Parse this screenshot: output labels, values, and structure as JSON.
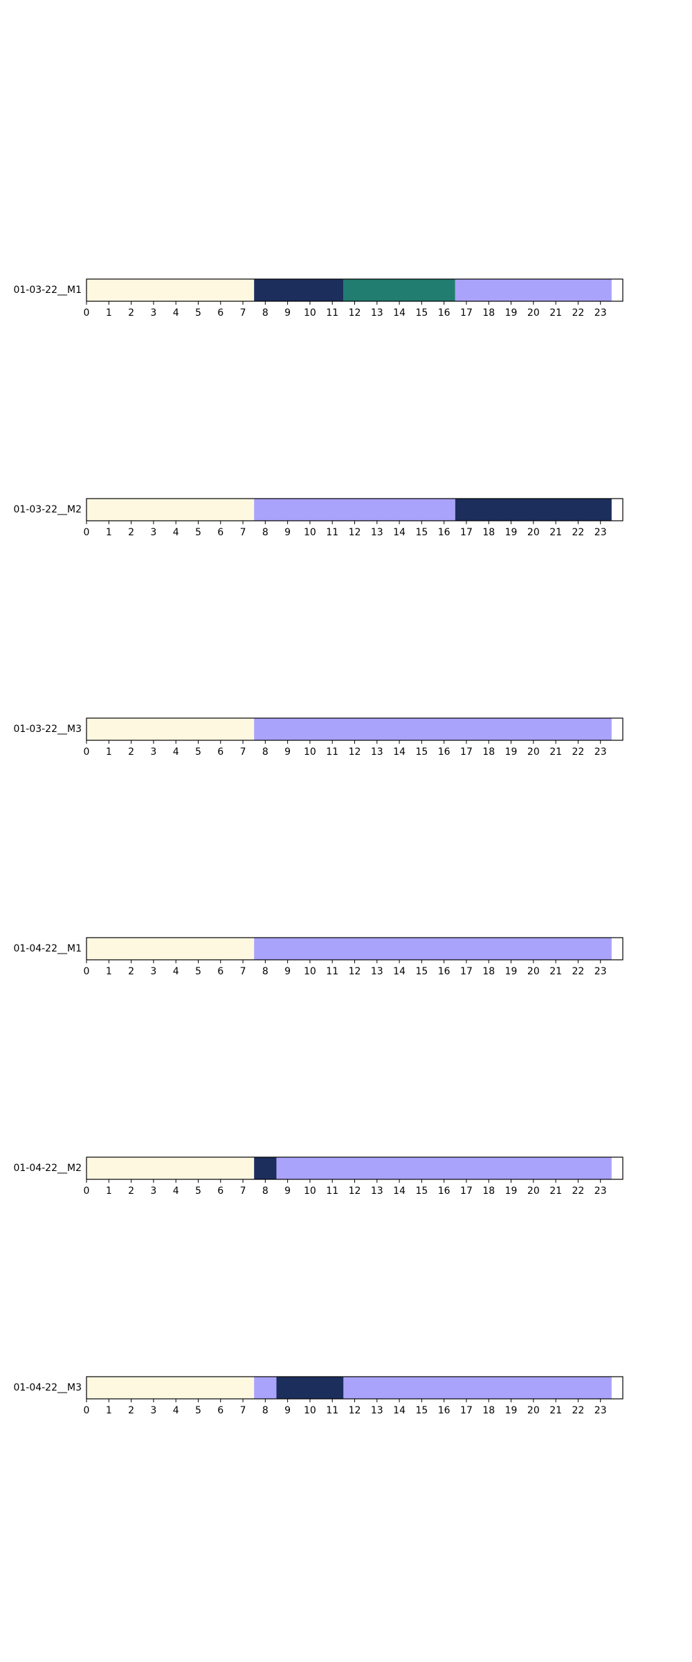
{
  "chart_data": {
    "type": "bar",
    "orientation": "horizontal-timeline",
    "xlim": [
      0,
      24
    ],
    "x_ticks": [
      "0",
      "1",
      "2",
      "3",
      "4",
      "5",
      "6",
      "7",
      "8",
      "9",
      "10",
      "11",
      "12",
      "13",
      "14",
      "15",
      "16",
      "17",
      "18",
      "19",
      "20",
      "21",
      "22",
      "23"
    ],
    "colors": {
      "cream": "#fff8e1",
      "navy": "#1c2e5c",
      "teal": "#217d70",
      "lavender": "#aaa3fb"
    },
    "rows": [
      {
        "label": "01-03-22__M1",
        "segments": [
          {
            "start": 0,
            "end": 7.5,
            "color": "cream"
          },
          {
            "start": 7.5,
            "end": 11.5,
            "color": "navy"
          },
          {
            "start": 11.5,
            "end": 16.5,
            "color": "teal"
          },
          {
            "start": 16.5,
            "end": 23.5,
            "color": "lavender"
          }
        ]
      },
      {
        "label": "01-03-22__M2",
        "segments": [
          {
            "start": 0,
            "end": 7.5,
            "color": "cream"
          },
          {
            "start": 7.5,
            "end": 16.5,
            "color": "lavender"
          },
          {
            "start": 16.5,
            "end": 23.5,
            "color": "navy"
          }
        ]
      },
      {
        "label": "01-03-22__M3",
        "segments": [
          {
            "start": 0,
            "end": 7.5,
            "color": "cream"
          },
          {
            "start": 7.5,
            "end": 23.5,
            "color": "lavender"
          }
        ]
      },
      {
        "label": "01-04-22__M1",
        "segments": [
          {
            "start": 0,
            "end": 7.5,
            "color": "cream"
          },
          {
            "start": 7.5,
            "end": 23.5,
            "color": "lavender"
          }
        ]
      },
      {
        "label": "01-04-22__M2",
        "segments": [
          {
            "start": 0,
            "end": 7.5,
            "color": "cream"
          },
          {
            "start": 7.5,
            "end": 8.5,
            "color": "navy"
          },
          {
            "start": 8.5,
            "end": 23.5,
            "color": "lavender"
          }
        ]
      },
      {
        "label": "01-04-22__M3",
        "segments": [
          {
            "start": 0,
            "end": 7.5,
            "color": "cream"
          },
          {
            "start": 7.5,
            "end": 8.5,
            "color": "lavender"
          },
          {
            "start": 8.5,
            "end": 11.5,
            "color": "navy"
          },
          {
            "start": 11.5,
            "end": 23.5,
            "color": "lavender"
          }
        ]
      }
    ]
  }
}
